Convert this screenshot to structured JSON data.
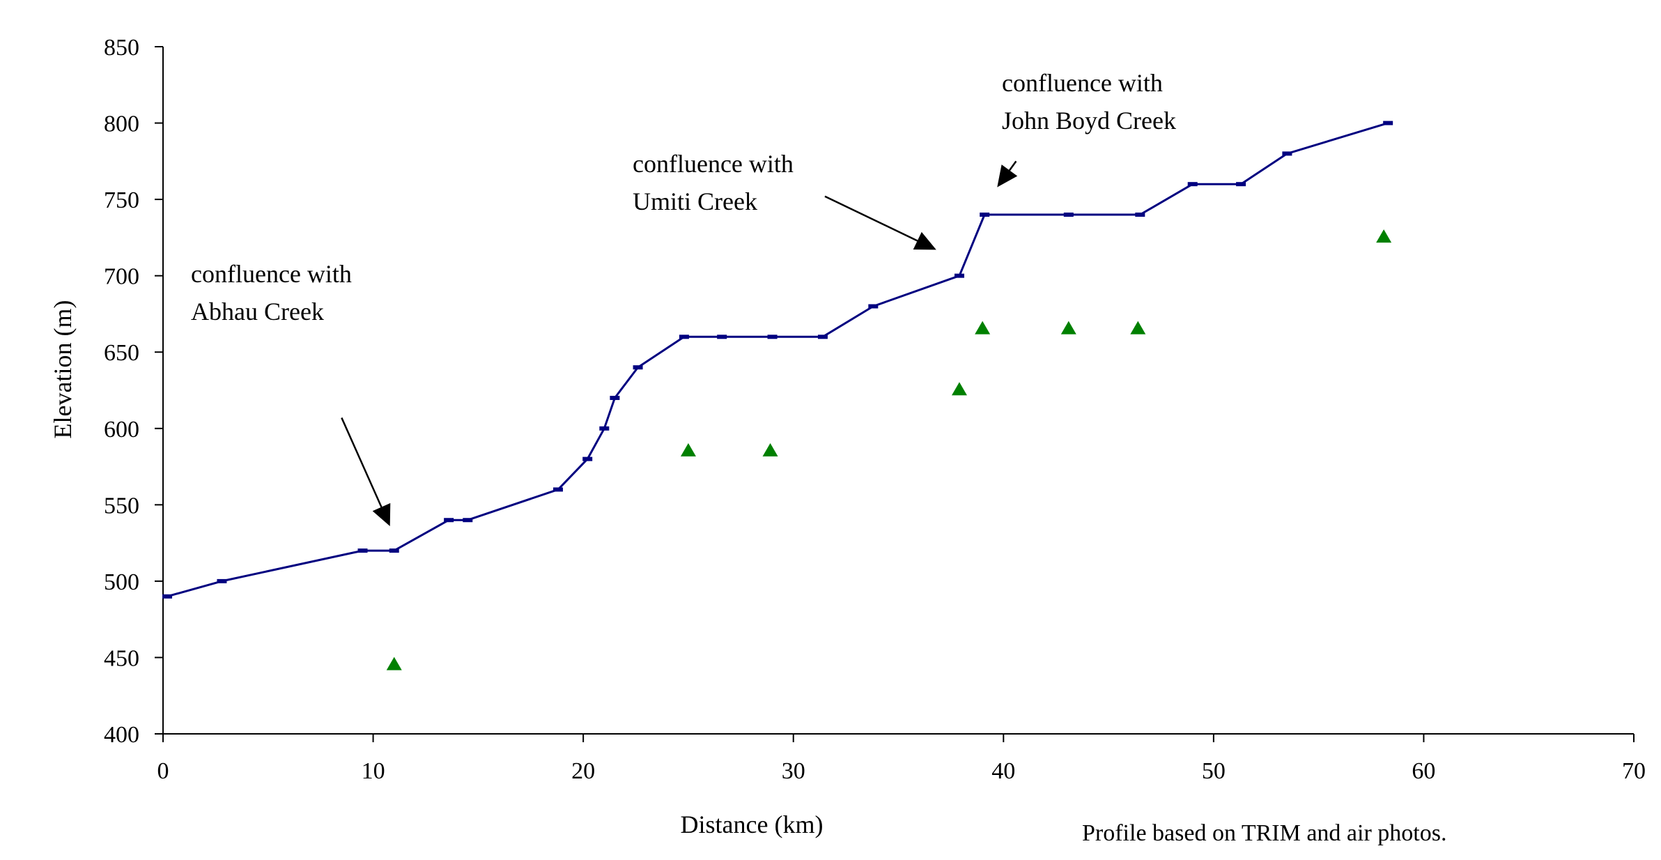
{
  "chart_data": {
    "type": "line",
    "xlabel": "Distance (km)",
    "ylabel": "Elevation (m)",
    "xlim": [
      0,
      70
    ],
    "ylim": [
      400,
      850
    ],
    "xticks": [
      0,
      10,
      20,
      30,
      40,
      50,
      60,
      70
    ],
    "yticks": [
      400,
      450,
      500,
      550,
      600,
      650,
      700,
      750,
      800,
      850
    ],
    "grid": false,
    "legend": "none",
    "series": [
      {
        "type": "line",
        "color": "#000080",
        "marker": "dash",
        "points": [
          [
            0.2,
            490
          ],
          [
            2.8,
            500
          ],
          [
            9.5,
            520
          ],
          [
            11.0,
            520
          ],
          [
            13.6,
            540
          ],
          [
            14.5,
            540
          ],
          [
            18.8,
            560
          ],
          [
            20.2,
            580
          ],
          [
            21.0,
            600
          ],
          [
            21.5,
            620
          ],
          [
            22.6,
            640
          ],
          [
            24.8,
            660
          ],
          [
            26.6,
            660
          ],
          [
            29.0,
            660
          ],
          [
            31.4,
            660
          ],
          [
            33.8,
            680
          ],
          [
            37.9,
            700
          ],
          [
            39.1,
            740
          ],
          [
            43.1,
            740
          ],
          [
            46.5,
            740
          ],
          [
            49.0,
            760
          ],
          [
            51.3,
            760
          ],
          [
            53.5,
            780
          ],
          [
            58.3,
            800
          ]
        ]
      },
      {
        "type": "scatter",
        "color": "#008000",
        "marker": "triangle",
        "points": [
          [
            11.0,
            445
          ],
          [
            25.0,
            585
          ],
          [
            28.9,
            585
          ],
          [
            37.9,
            625
          ],
          [
            39.0,
            665
          ],
          [
            43.1,
            665
          ],
          [
            46.4,
            665
          ],
          [
            58.1,
            725
          ]
        ]
      }
    ],
    "annotations": [
      {
        "lines": [
          "confluence with",
          "Abhau Creek"
        ],
        "arrow_from": [
          8.5,
          607
        ],
        "arrow_to": [
          10.8,
          536
        ]
      },
      {
        "lines": [
          "confluence with",
          "Umiti Creek"
        ],
        "arrow_from": [
          31.5,
          752
        ],
        "arrow_to": [
          36.8,
          717
        ]
      },
      {
        "lines": [
          "confluence with",
          "John Boyd Creek"
        ],
        "arrow_from": [
          40.6,
          775
        ],
        "arrow_to": [
          39.7,
          758
        ]
      }
    ],
    "note": "Profile based on TRIM and air photos."
  }
}
